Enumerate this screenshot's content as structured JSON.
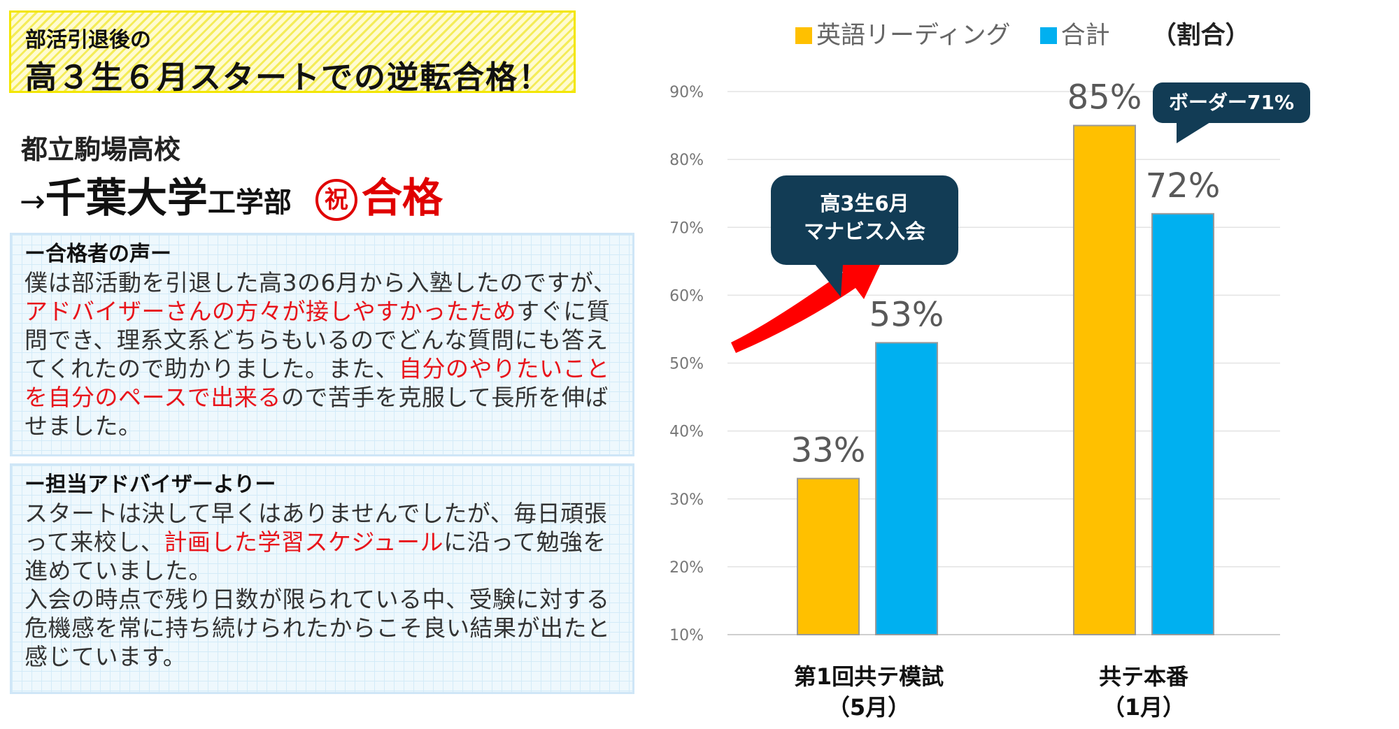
{
  "headline": {
    "line1": "部活引退後の",
    "line2": "高３生６月スタートでの逆転合格！"
  },
  "student": {
    "school": "都立駒場高校",
    "arrow": "→",
    "university": "千葉大学",
    "faculty": "工学部",
    "celebration_mark": "祝",
    "result": "合格"
  },
  "testimonial": {
    "heading": "ー合格者の声ー",
    "text_1": "僕は部活動を引退した高3の6月から入塾したのですが、",
    "highlight_1": "アドバイザーさんの方々が接しやすかったため",
    "text_2": "すぐに質問でき、理系文系どちらもいるのでどんな質問にも答えてくれたので助かりました。また、",
    "highlight_2": "自分のやりたいことを自分のペースで出来る",
    "text_3": "ので苦手を克服して長所を伸ばせました。"
  },
  "advisor": {
    "heading": "ー担当アドバイザーよりー",
    "text_1": "スタートは決して早くはありませんでしたが、毎日頑張って来校し、",
    "highlight_1": "計画した学習スケジュール",
    "text_2": "に沿って勉強を進めていました。",
    "text_3": "入会の時点で残り日数が限られている中、受験に対する危機感を常に持ち続けられたからこそ良い結果が出たと感じています。"
  },
  "colors": {
    "english": "#FFC000",
    "total": "#00B0F0",
    "bar_border": "#9a9a9a",
    "arrow": "#FF0000",
    "callout": "#123C55",
    "highlight_red": "#E8141B",
    "headline_yellow": "#F3E600"
  },
  "chart_data": {
    "type": "bar",
    "unit_label": "（割合）",
    "categories": [
      {
        "line1": "第1回共テ模試",
        "line2": "（5月）"
      },
      {
        "line1": "共テ本番",
        "line2": "（1月）"
      }
    ],
    "series": [
      {
        "name": "英語リーディング",
        "values": [
          33,
          85
        ],
        "labels": [
          "33%",
          "85%"
        ]
      },
      {
        "name": "合計",
        "values": [
          53,
          72
        ],
        "labels": [
          "53%",
          "72%"
        ]
      }
    ],
    "ylim": [
      10,
      90
    ],
    "yticks": [
      "10%",
      "20%",
      "30%",
      "40%",
      "50%",
      "60%",
      "70%",
      "80%",
      "90%"
    ],
    "grid": true,
    "legend_position": "top",
    "annotations": [
      {
        "text_line1": "高3生6月",
        "text_line2": "マナビス入会"
      },
      {
        "text": "ボーダー71%"
      }
    ]
  }
}
